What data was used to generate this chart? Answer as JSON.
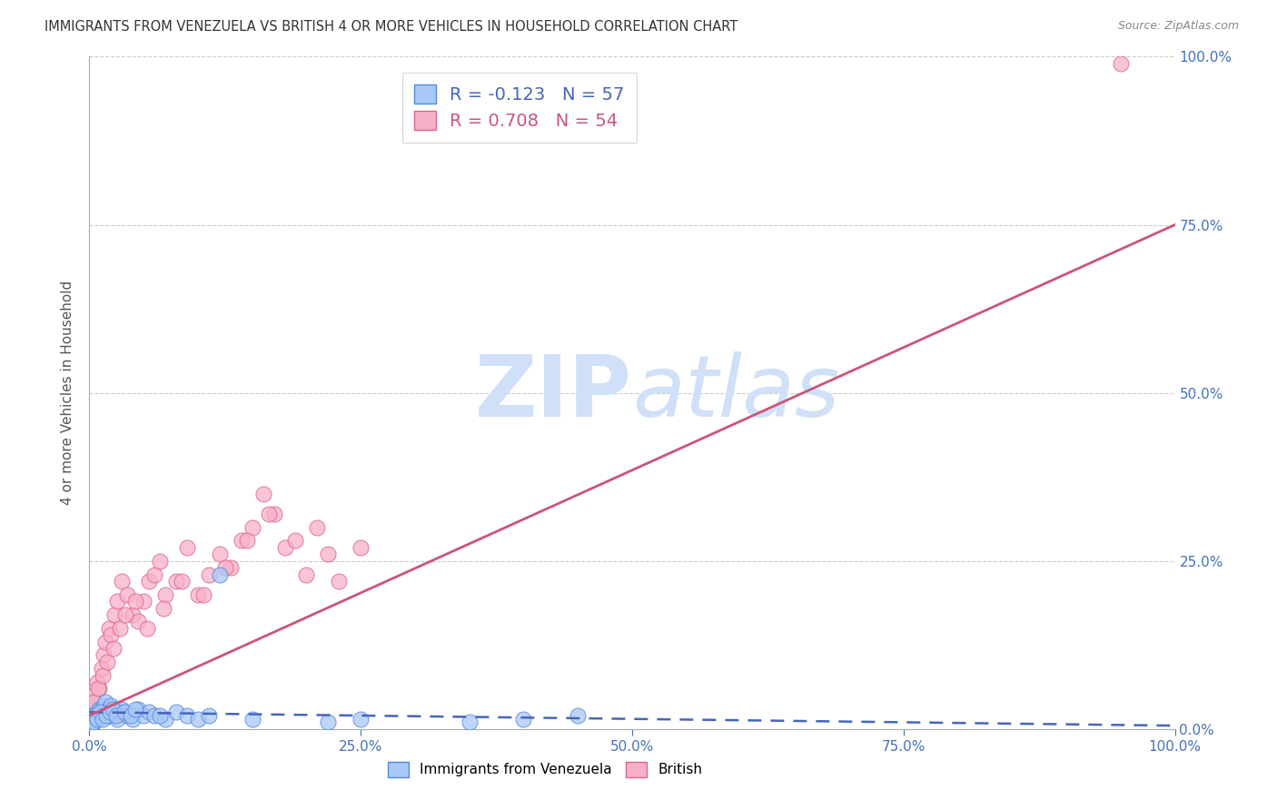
{
  "title": "IMMIGRANTS FROM VENEZUELA VS BRITISH 4 OR MORE VEHICLES IN HOUSEHOLD CORRELATION CHART",
  "source": "Source: ZipAtlas.com",
  "ylabel": "4 or more Vehicles in Household",
  "legend1_label": "Immigrants from Venezuela",
  "legend2_label": "British",
  "legend1_R": "-0.123",
  "legend1_N": "57",
  "legend2_R": "0.708",
  "legend2_N": "54",
  "color_blue_fill": "#a8c8f8",
  "color_blue_edge": "#5588dd",
  "color_blue_line": "#4466bb",
  "color_pink_fill": "#f8b0c8",
  "color_pink_edge": "#dd6688",
  "color_pink_line": "#cc5577",
  "color_tick": "#4472c4",
  "color_grid": "#cccccc",
  "color_title": "#333333",
  "color_source": "#888888",
  "color_ylabel": "#555555",
  "watermark_zip": "ZIP",
  "watermark_atlas": "atlas",
  "watermark_color": "#d0e0f8",
  "xlim": [
    0,
    100
  ],
  "ylim": [
    0,
    100
  ],
  "xticks": [
    0,
    25,
    50,
    75,
    100
  ],
  "yticks": [
    0,
    25,
    50,
    75,
    100
  ],
  "xtick_labels": [
    "0.0%",
    "25.0%",
    "50.0%",
    "75.0%",
    "100.0%"
  ],
  "ytick_labels": [
    "0.0%",
    "25.0%",
    "50.0%",
    "75.0%",
    "100.0%"
  ],
  "blue_x": [
    0.1,
    0.2,
    0.3,
    0.4,
    0.5,
    0.6,
    0.7,
    0.8,
    0.9,
    1.0,
    1.1,
    1.2,
    1.3,
    1.4,
    1.5,
    1.6,
    1.7,
    1.8,
    1.9,
    2.0,
    2.2,
    2.4,
    2.6,
    2.8,
    3.0,
    3.5,
    4.0,
    4.5,
    5.0,
    5.5,
    6.0,
    7.0,
    8.0,
    9.0,
    10.0,
    11.0,
    12.0,
    0.15,
    0.35,
    0.55,
    0.75,
    0.95,
    1.25,
    1.55,
    1.85,
    2.1,
    2.5,
    3.2,
    3.8,
    4.2,
    6.5,
    15.0,
    22.0,
    25.0,
    35.0,
    40.0,
    45.0
  ],
  "blue_y": [
    1.0,
    0.5,
    1.5,
    1.0,
    2.0,
    1.5,
    2.5,
    2.0,
    3.0,
    2.0,
    3.0,
    2.5,
    3.5,
    2.0,
    4.0,
    2.5,
    3.0,
    2.0,
    2.5,
    3.5,
    2.0,
    3.0,
    1.5,
    2.5,
    3.0,
    2.0,
    1.5,
    3.0,
    2.0,
    2.5,
    2.0,
    1.5,
    2.5,
    2.0,
    1.5,
    2.0,
    23.0,
    0.5,
    1.0,
    2.0,
    1.5,
    2.5,
    1.5,
    2.0,
    2.5,
    3.0,
    2.0,
    2.5,
    2.0,
    3.0,
    2.0,
    1.5,
    1.0,
    1.5,
    1.0,
    1.5,
    2.0
  ],
  "pink_x": [
    0.1,
    0.3,
    0.5,
    0.7,
    0.9,
    1.1,
    1.3,
    1.5,
    1.8,
    2.0,
    2.3,
    2.6,
    3.0,
    3.5,
    4.0,
    4.5,
    5.0,
    5.5,
    6.0,
    6.5,
    7.0,
    8.0,
    9.0,
    10.0,
    11.0,
    12.0,
    13.0,
    14.0,
    15.0,
    16.0,
    17.0,
    18.0,
    20.0,
    22.0,
    95.0,
    0.4,
    0.8,
    1.2,
    1.6,
    2.2,
    2.8,
    3.3,
    4.2,
    5.3,
    6.8,
    8.5,
    10.5,
    12.5,
    14.5,
    16.5,
    19.0,
    21.0,
    23.0,
    25.0
  ],
  "pink_y": [
    3.0,
    5.0,
    4.0,
    7.0,
    6.0,
    9.0,
    11.0,
    13.0,
    15.0,
    14.0,
    17.0,
    19.0,
    22.0,
    20.0,
    17.0,
    16.0,
    19.0,
    22.0,
    23.0,
    25.0,
    20.0,
    22.0,
    27.0,
    20.0,
    23.0,
    26.0,
    24.0,
    28.0,
    30.0,
    35.0,
    32.0,
    27.0,
    23.0,
    26.0,
    99.0,
    4.0,
    6.0,
    8.0,
    10.0,
    12.0,
    15.0,
    17.0,
    19.0,
    15.0,
    18.0,
    22.0,
    20.0,
    24.0,
    28.0,
    32.0,
    28.0,
    30.0,
    22.0,
    27.0
  ],
  "blue_reg_x0": 0,
  "blue_reg_y0": 2.5,
  "blue_reg_x1": 100,
  "blue_reg_y1": 0.5,
  "pink_reg_x0": 0,
  "pink_reg_y0": 2.0,
  "pink_reg_x1": 100,
  "pink_reg_y1": 75.0
}
